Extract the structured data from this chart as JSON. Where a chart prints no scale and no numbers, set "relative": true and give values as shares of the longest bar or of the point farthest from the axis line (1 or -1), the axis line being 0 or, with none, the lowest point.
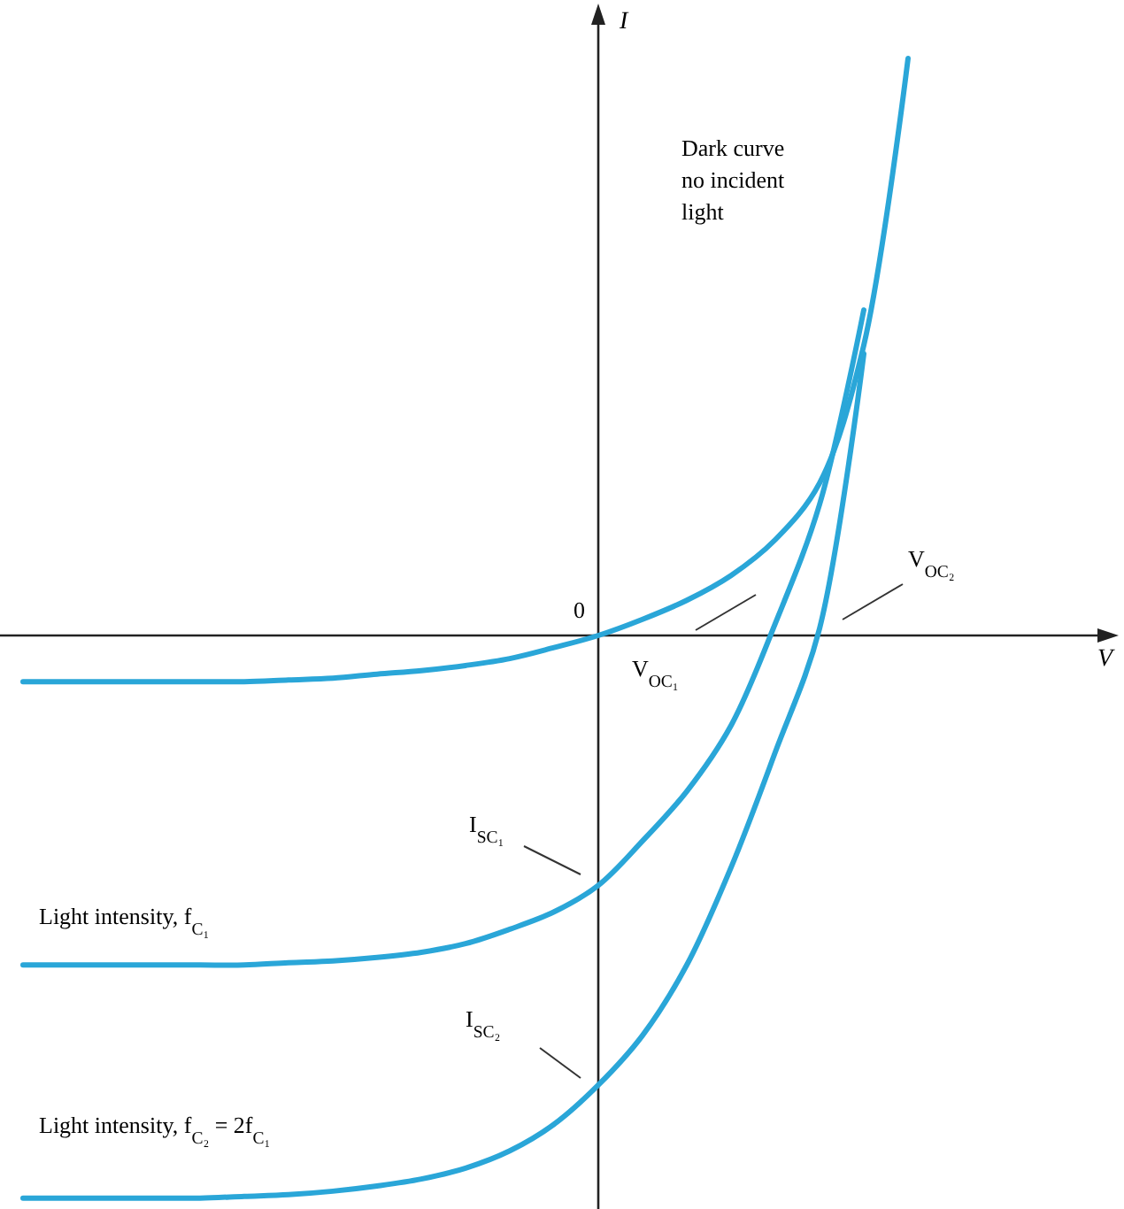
{
  "chart_data": {
    "type": "line",
    "relative": true,
    "ylabel": "I",
    "categories": [
      null,
      null,
      null,
      null,
      null,
      null,
      null,
      null,
      null,
      null,
      null,
      null,
      null,
      null,
      null,
      null,
      null,
      null,
      null,
      null,
      null
    ],
    "series": [
      {
        "color": "#2aa6d8",
        "values": [
          -0.08,
          -0.08,
          -0.08,
          -0.08,
          -0.08,
          -0.08,
          -0.077,
          -0.074,
          -0.067,
          -0.061,
          -0.052,
          -0.04,
          -0.021,
          0,
          0.028,
          0.061,
          0.104,
          0.166,
          0.264,
          0.503,
          1
        ]
      },
      {
        "color": "#2aa6d8",
        "values": [
          -0.571,
          -0.571,
          -0.571,
          -0.571,
          -0.571,
          -0.571,
          -0.567,
          -0.564,
          -0.558,
          -0.549,
          -0.534,
          -0.509,
          -0.479,
          -0.433,
          -0.356,
          -0.27,
          -0.156,
          0.021,
          0.227,
          0.564,
          null
        ]
      },
      {
        "color": "#2aa6d8",
        "values": [
          -0.975,
          -0.975,
          -0.975,
          -0.975,
          -0.975,
          -0.972,
          -0.969,
          -0.963,
          -0.954,
          -0.942,
          -0.923,
          -0.893,
          -0.847,
          -0.779,
          -0.693,
          -0.571,
          -0.402,
          -0.202,
          0.012,
          0.488,
          null
        ]
      }
    ],
    "annotations": [
      "0",
      "Dark curve no incident light",
      "V$_{OC₂}$",
      "V$_{OC₁}$",
      "I$_{SC₁}$",
      "I$_{SC₂}$",
      "Light intensity, f$_{C₁}$",
      "Light intensity, f$_{C₂}$ = 2f$_{C₁}$",
      "V"
    ]
  }
}
